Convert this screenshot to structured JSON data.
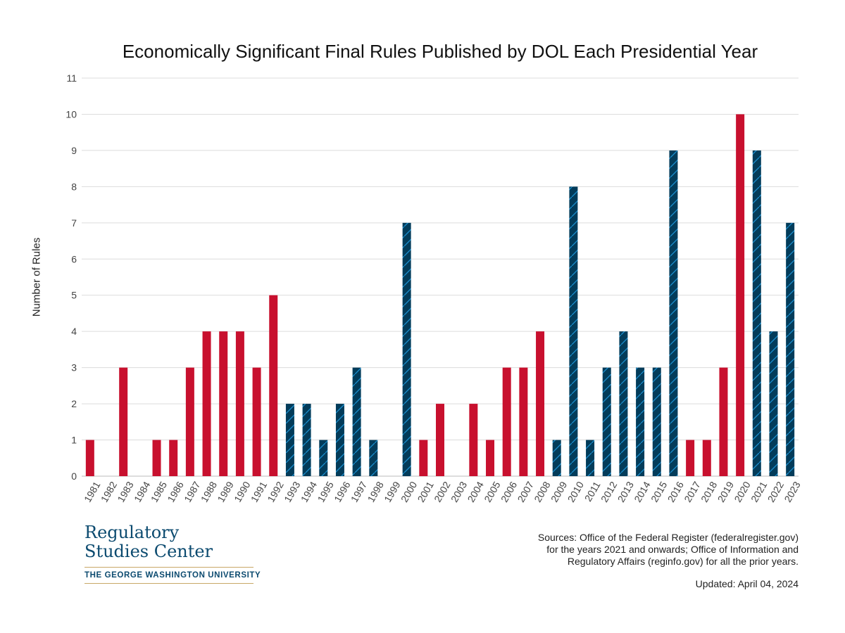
{
  "chart_data": {
    "type": "bar",
    "title": "Economically Significant Final Rules Published by DOL Each Presidential Year",
    "ylabel": "Number of Rules",
    "xlabel": "",
    "ylim": [
      0,
      11
    ],
    "yticks": [
      0,
      1,
      2,
      3,
      4,
      5,
      6,
      7,
      8,
      9,
      10,
      11
    ],
    "grid": true,
    "categories": [
      "1981",
      "1982",
      "1983",
      "1984",
      "1985",
      "1986",
      "1987",
      "1988",
      "1989",
      "1990",
      "1991",
      "1992",
      "1993",
      "1994",
      "1995",
      "1996",
      "1997",
      "1998",
      "1999",
      "2000",
      "2001",
      "2002",
      "2003",
      "2004",
      "2005",
      "2006",
      "2007",
      "2008",
      "2009",
      "2010",
      "2011",
      "2012",
      "2013",
      "2014",
      "2015",
      "2016",
      "2017",
      "2018",
      "2019",
      "2020",
      "2021",
      "2022",
      "2023"
    ],
    "values": [
      1,
      0,
      3,
      0,
      1,
      1,
      3,
      4,
      4,
      4,
      3,
      5,
      2,
      2,
      1,
      2,
      3,
      1,
      0,
      7,
      1,
      2,
      0,
      2,
      1,
      3,
      3,
      4,
      1,
      8,
      1,
      3,
      4,
      3,
      3,
      9,
      1,
      1,
      3,
      10,
      9,
      4,
      7
    ],
    "party": [
      "R",
      "R",
      "R",
      "R",
      "R",
      "R",
      "R",
      "R",
      "R",
      "R",
      "R",
      "R",
      "D",
      "D",
      "D",
      "D",
      "D",
      "D",
      "D",
      "D",
      "R",
      "R",
      "R",
      "R",
      "R",
      "R",
      "R",
      "R",
      "D",
      "D",
      "D",
      "D",
      "D",
      "D",
      "D",
      "D",
      "R",
      "R",
      "R",
      "R",
      "D",
      "D",
      "D"
    ],
    "colors": {
      "R": "#c8102e",
      "D": "#033c5a",
      "D_hatch": "#1b8fd0",
      "grid": "#dcdcdc",
      "axis_text": "#444444"
    }
  },
  "logo": {
    "line1": "Regulatory",
    "line2": "Studies Center",
    "university": "THE GEORGE WASHINGTON UNIVERSITY"
  },
  "footer": {
    "sources_line1": "Sources: Office of the Federal Register (federalregister.gov)",
    "sources_line2": "for the years 2021 and onwards; Office of Information and",
    "sources_line3": "Regulatory Affairs (reginfo.gov) for all the prior years.",
    "updated": "Updated: April 04, 2024"
  }
}
